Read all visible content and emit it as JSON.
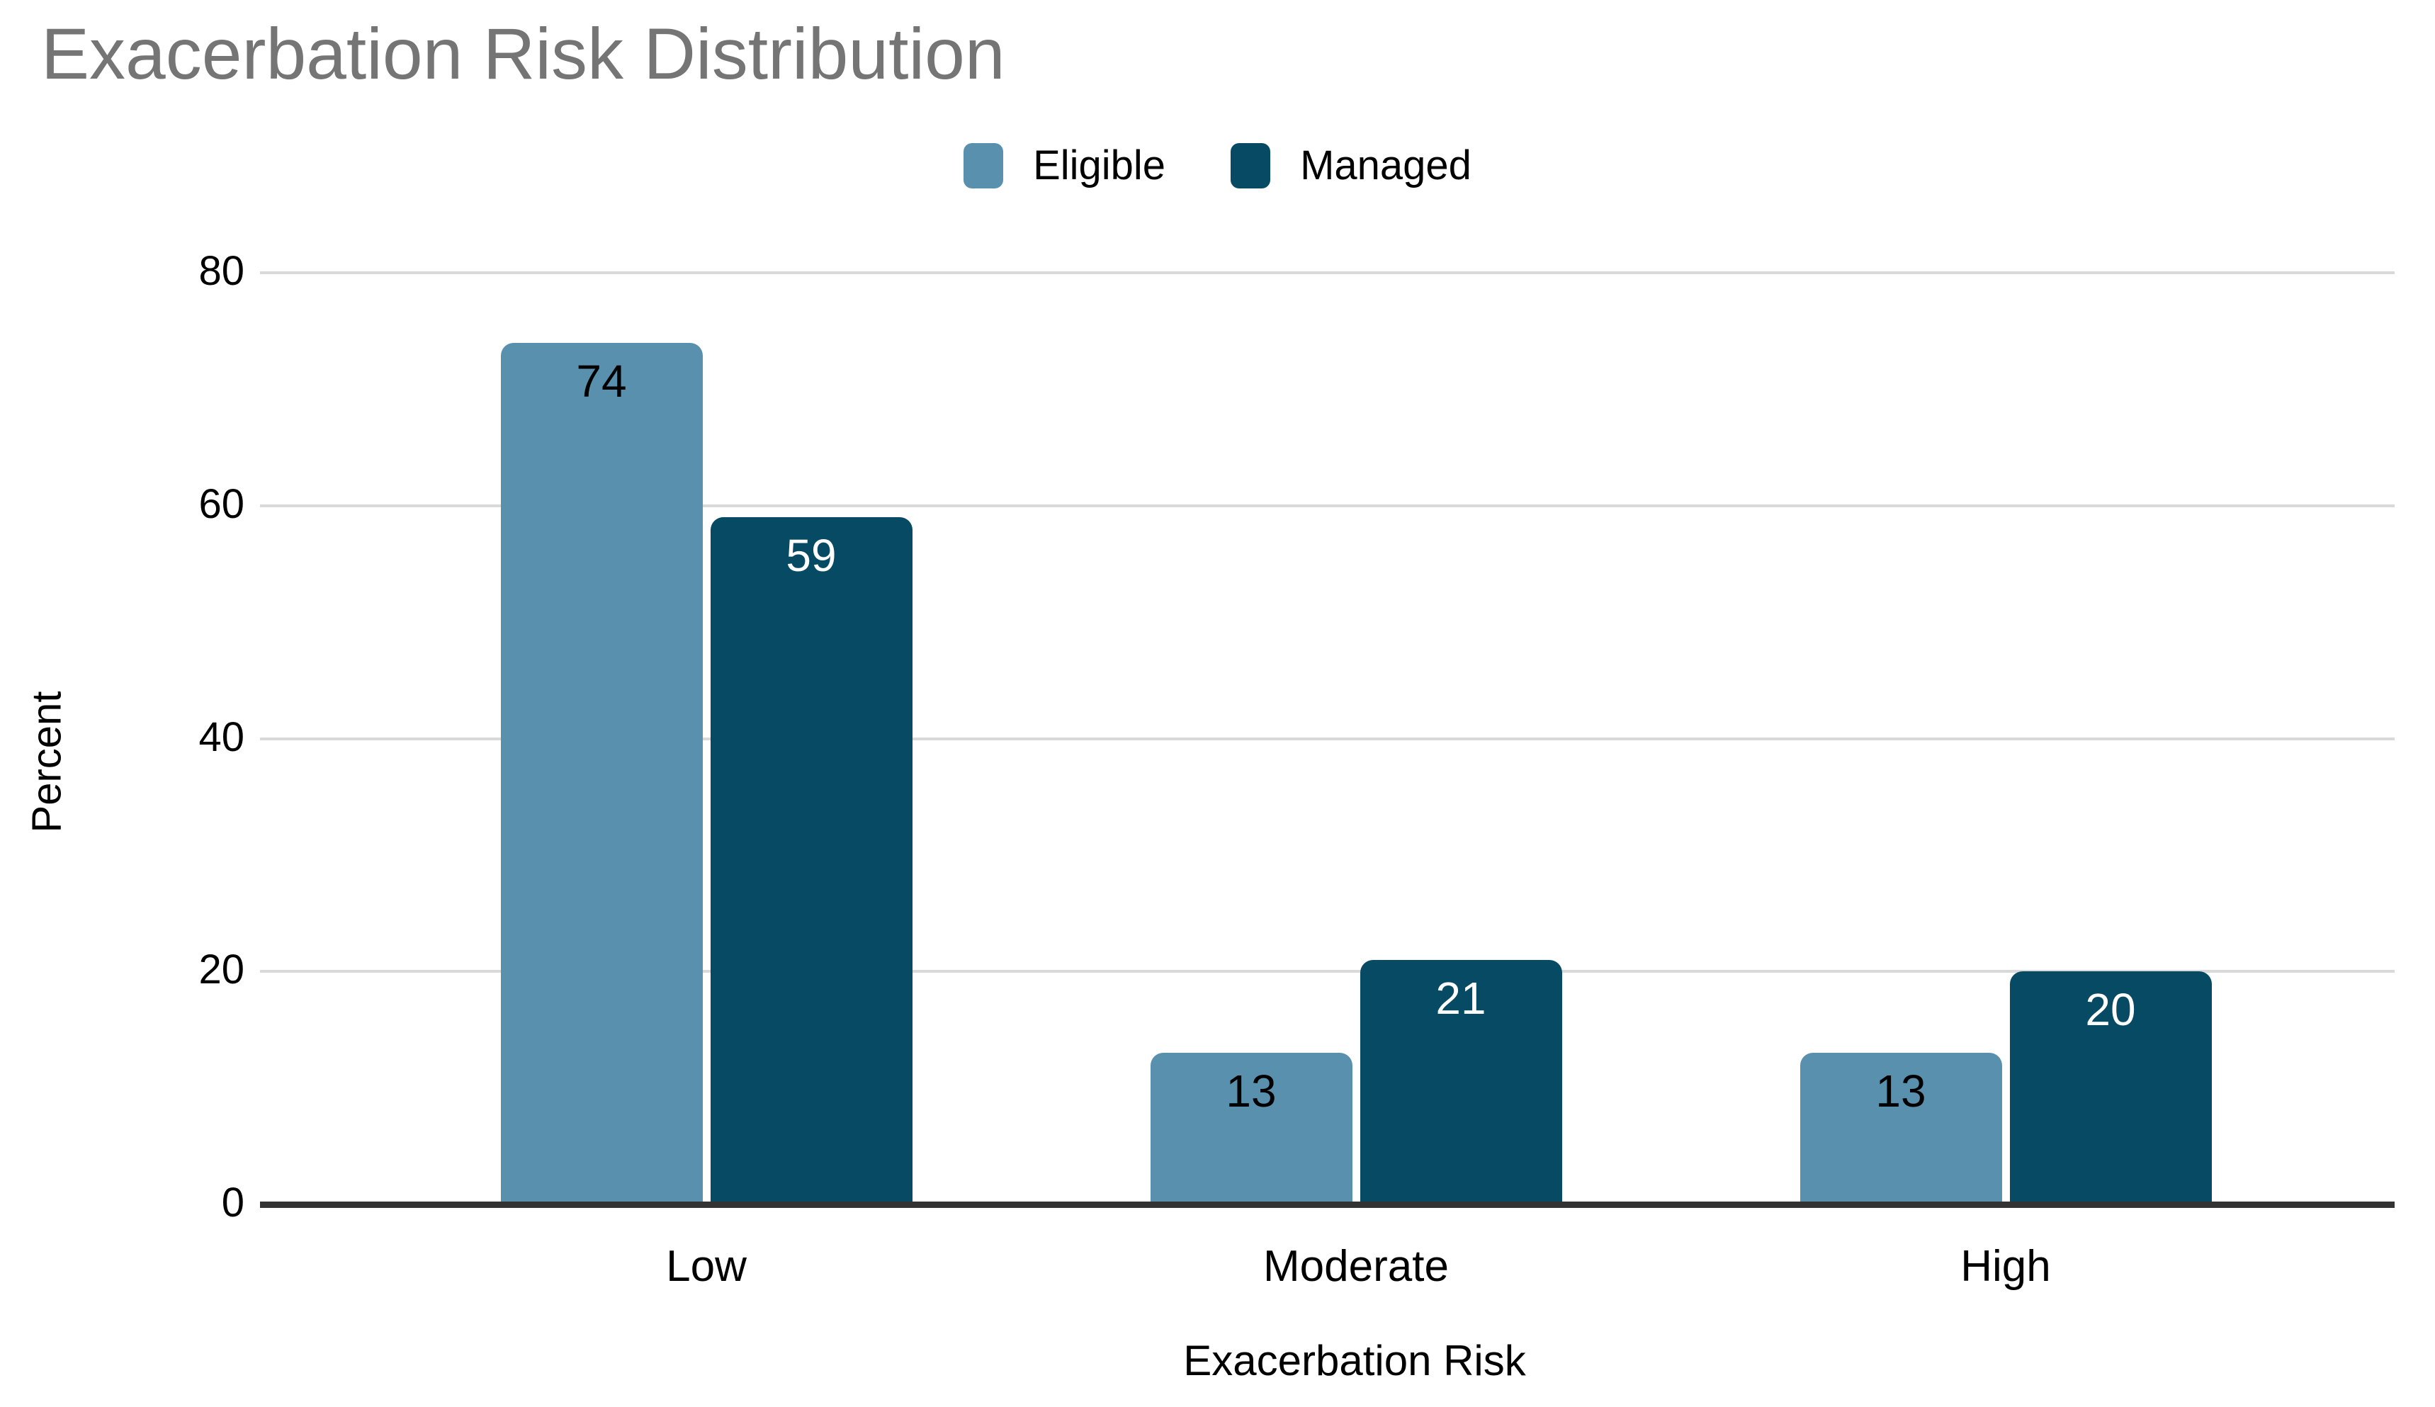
{
  "chart_data": {
    "type": "bar",
    "title": "Exacerbation Risk Distribution",
    "xlabel": "Exacerbation Risk",
    "ylabel": "Percent",
    "categories": [
      "Low",
      "Moderate",
      "High"
    ],
    "series": [
      {
        "name": "Eligible",
        "values": [
          74,
          13,
          13
        ],
        "color": "#5890ae",
        "label_color": "#000000"
      },
      {
        "name": "Managed",
        "values": [
          59,
          21,
          20
        ],
        "color": "#074a63",
        "label_color": "#ffffff"
      }
    ],
    "ylim": [
      0,
      80
    ],
    "yticks": [
      0,
      20,
      40,
      60,
      80
    ],
    "grid": true,
    "legend_position": "top-center",
    "colors": {
      "title": "#757575",
      "gridline": "#d9d9d9",
      "baseline": "#333333",
      "axis_text": "#000000"
    }
  }
}
